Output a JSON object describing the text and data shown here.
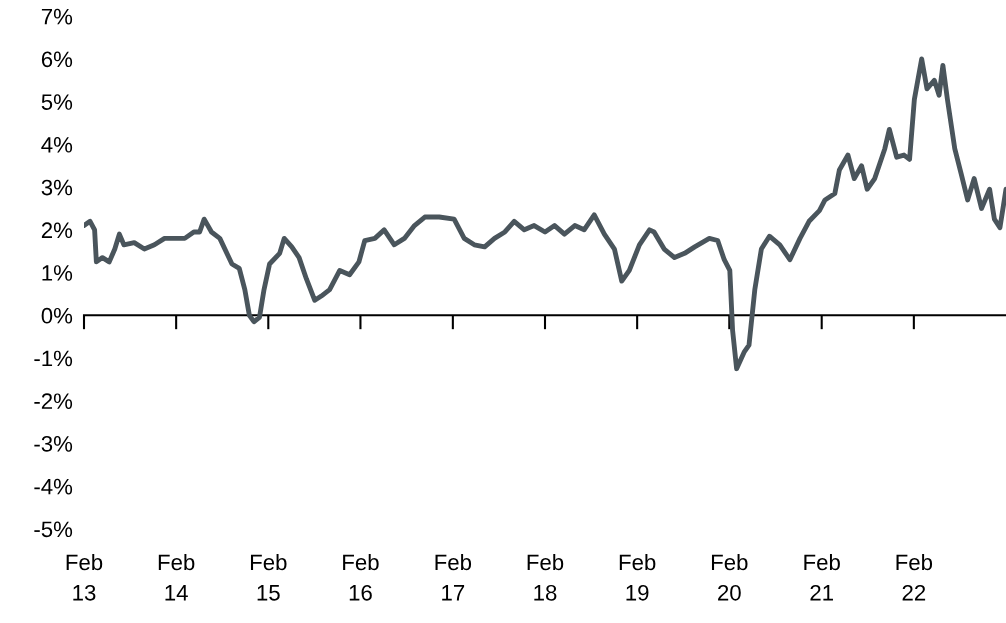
{
  "chart_data": {
    "type": "line",
    "x": [
      "2013-02-01",
      "2013-02-25",
      "2013-03-15",
      "2013-03-22",
      "2013-04-15",
      "2013-05-12",
      "2013-06-03",
      "2013-06-21",
      "2013-07-09",
      "2013-08-19",
      "2013-09-28",
      "2013-11-07",
      "2013-12-17",
      "2014-01-26",
      "2014-03-07",
      "2014-04-12",
      "2014-05-05",
      "2014-05-23",
      "2014-06-21",
      "2014-07-24",
      "2014-09-10",
      "2014-10-09",
      "2014-10-31",
      "2014-11-18",
      "2014-12-06",
      "2014-12-28",
      "2015-01-15",
      "2015-02-06",
      "2015-03-18",
      "2015-04-05",
      "2015-05-05",
      "2015-06-03",
      "2015-07-02",
      "2015-08-04",
      "2015-08-30",
      "2015-10-02",
      "2015-11-11",
      "2015-12-20",
      "2016-01-26",
      "2016-02-18",
      "2016-03-29",
      "2016-05-05",
      "2016-06-14",
      "2016-07-24",
      "2016-09-02",
      "2016-10-13",
      "2016-12-09",
      "2017-02-06",
      "2017-03-18",
      "2017-04-27",
      "2017-06-07",
      "2017-07-16",
      "2017-08-26",
      "2017-10-02",
      "2017-11-11",
      "2017-12-20",
      "2018-02-01",
      "2018-03-11",
      "2018-04-19",
      "2018-05-30",
      "2018-07-06",
      "2018-08-15",
      "2018-09-24",
      "2018-11-03",
      "2018-12-02",
      "2019-01-01",
      "2019-02-10",
      "2019-03-22",
      "2019-04-09",
      "2019-05-19",
      "2019-06-29",
      "2019-08-08",
      "2019-09-17",
      "2019-11-14",
      "2019-12-17",
      "2020-01-12",
      "2020-02-03",
      "2020-02-14",
      "2020-03-01",
      "2020-04-01",
      "2020-04-19",
      "2020-05-12",
      "2020-06-07",
      "2020-07-09",
      "2020-08-19",
      "2020-09-28",
      "2020-11-07",
      "2020-12-13",
      "2021-01-23",
      "2021-02-14",
      "2021-03-25",
      "2021-04-12",
      "2021-05-16",
      "2021-06-10",
      "2021-07-09",
      "2021-07-31",
      "2021-08-30",
      "2021-10-09",
      "2021-10-27",
      "2021-11-25",
      "2021-12-24",
      "2022-01-15",
      "2022-02-03",
      "2022-03-04",
      "2022-03-25",
      "2022-04-23",
      "2022-05-12",
      "2022-05-27",
      "2022-06-14",
      "2022-07-13",
      "2022-08-08",
      "2022-09-02",
      "2022-09-28",
      "2022-10-27",
      "2022-11-28",
      "2022-12-17",
      "2023-01-08",
      "2023-02-01"
    ],
    "series": [
      {
        "color": "#4a555c",
        "values": [
          2.1,
          2.2,
          2.0,
          1.25,
          1.35,
          1.25,
          1.55,
          1.9,
          1.65,
          1.7,
          1.55,
          1.65,
          1.8,
          1.8,
          1.8,
          1.95,
          1.95,
          2.25,
          1.95,
          1.8,
          1.2,
          1.1,
          0.6,
          0,
          -0.15,
          -0.05,
          0.6,
          1.2,
          1.45,
          1.8,
          1.6,
          1.35,
          0.85,
          0.35,
          0.45,
          0.6,
          1.05,
          0.95,
          1.25,
          1.75,
          1.8,
          2.0,
          1.65,
          1.8,
          2.1,
          2.3,
          2.3,
          2.25,
          1.8,
          1.65,
          1.6,
          1.8,
          1.95,
          2.2,
          2.0,
          2.1,
          1.95,
          2.1,
          1.9,
          2.1,
          2.0,
          2.35,
          1.9,
          1.55,
          0.8,
          1.05,
          1.65,
          2.0,
          1.95,
          1.55,
          1.35,
          1.45,
          1.6,
          1.8,
          1.75,
          1.3,
          1.05,
          -0.35,
          -1.25,
          -0.85,
          -0.7,
          0.6,
          1.55,
          1.85,
          1.65,
          1.3,
          1.8,
          2.2,
          2.45,
          2.7,
          2.85,
          3.4,
          3.75,
          3.2,
          3.5,
          2.95,
          3.2,
          3.9,
          4.35,
          3.7,
          3.75,
          3.65,
          5.05,
          6.0,
          5.3,
          5.5,
          5.15,
          5.85,
          5.05,
          3.9,
          3.3,
          2.7,
          3.2,
          2.5,
          2.95,
          2.25,
          2.05,
          2.95
        ]
      }
    ],
    "xlim": [
      "2013-02-01",
      "2023-02-01"
    ],
    "xticks": [
      {
        "value": "2013-02-01",
        "label": "Feb\n13"
      },
      {
        "value": "2014-02-01",
        "label": "Feb\n14"
      },
      {
        "value": "2015-02-01",
        "label": "Feb\n15"
      },
      {
        "value": "2016-02-01",
        "label": "Feb\n16"
      },
      {
        "value": "2017-02-01",
        "label": "Feb\n17"
      },
      {
        "value": "2018-02-01",
        "label": "Feb\n18"
      },
      {
        "value": "2019-02-01",
        "label": "Feb\n19"
      },
      {
        "value": "2020-02-01",
        "label": "Feb\n20"
      },
      {
        "value": "2021-02-01",
        "label": "Feb\n21"
      },
      {
        "value": "2022-02-01",
        "label": "Feb\n22"
      }
    ],
    "ylim": [
      -5,
      7
    ],
    "yticks": [
      {
        "value": -5,
        "label": "-5%"
      },
      {
        "value": -4,
        "label": "-4%"
      },
      {
        "value": -3,
        "label": "-3%"
      },
      {
        "value": -2,
        "label": "-2%"
      },
      {
        "value": -1,
        "label": "-1%"
      },
      {
        "value": 0,
        "label": "0%"
      },
      {
        "value": 1,
        "label": "1%"
      },
      {
        "value": 2,
        "label": "2%"
      },
      {
        "value": 3,
        "label": "3%"
      },
      {
        "value": 4,
        "label": "4%"
      },
      {
        "value": 5,
        "label": "5%"
      },
      {
        "value": 6,
        "label": "6%"
      },
      {
        "value": 7,
        "label": "7%"
      }
    ],
    "ref_lines": [
      {
        "axis": "y",
        "value": 0,
        "color": "#000000"
      }
    ],
    "grid": false,
    "legend": false
  }
}
